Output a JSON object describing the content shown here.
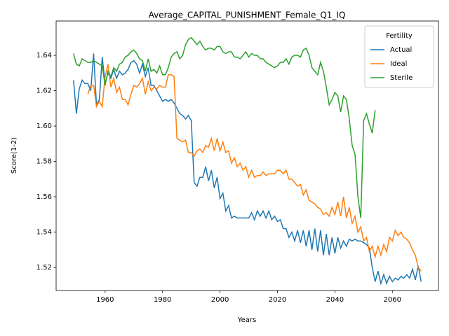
{
  "chart_data": {
    "type": "line",
    "title": "Average_CAPITAL_PUNISHMENT_Female_Q1_IQ",
    "x_label": "Years",
    "y_label": "Score(1-2)",
    "legend_title": "Fertility",
    "legend": "upper right",
    "x": [
      1949,
      1950,
      1951,
      1952,
      1953,
      1954,
      1955,
      1956,
      1957,
      1958,
      1959,
      1960,
      1961,
      1962,
      1963,
      1964,
      1965,
      1966,
      1967,
      1968,
      1969,
      1970,
      1971,
      1972,
      1973,
      1974,
      1975,
      1976,
      1977,
      1978,
      1979,
      1980,
      1981,
      1982,
      1983,
      1984,
      1985,
      1986,
      1987,
      1988,
      1989,
      1990,
      1991,
      1992,
      1993,
      1994,
      1995,
      1996,
      1997,
      1998,
      1999,
      2000,
      2001,
      2002,
      2003,
      2004,
      2005,
      2006,
      2007,
      2008,
      2009,
      2010,
      2011,
      2012,
      2013,
      2014,
      2015,
      2016,
      2017,
      2018,
      2019,
      2020,
      2021,
      2022,
      2023,
      2024,
      2025,
      2026,
      2027,
      2028,
      2029,
      2030,
      2031,
      2032,
      2033,
      2034,
      2035,
      2036,
      2037,
      2038,
      2039,
      2040,
      2041,
      2042,
      2043,
      2044,
      2045,
      2046,
      2047,
      2048,
      2049,
      2050,
      2051,
      2052,
      2053,
      2054,
      2055,
      2056,
      2057,
      2058,
      2059,
      2060,
      2061,
      2062,
      2063,
      2064,
      2065,
      2066,
      2067,
      2068,
      2069,
      2070
    ],
    "series": [
      {
        "name": "Actual",
        "color": "#1f77b4",
        "values": [
          1.626,
          1.607,
          1.621,
          1.626,
          1.624,
          1.624,
          1.62,
          1.641,
          1.612,
          1.615,
          1.639,
          1.624,
          1.63,
          1.627,
          1.632,
          1.627,
          1.631,
          1.629,
          1.63,
          1.632,
          1.636,
          1.637,
          1.635,
          1.63,
          1.635,
          1.628,
          1.633,
          1.623,
          1.623,
          1.62,
          1.617,
          1.614,
          1.615,
          1.614,
          1.615,
          1.613,
          1.61,
          1.607,
          1.606,
          1.604,
          1.606,
          1.603,
          1.568,
          1.566,
          1.571,
          1.571,
          1.577,
          1.569,
          1.575,
          1.565,
          1.571,
          1.559,
          1.562,
          1.552,
          1.555,
          1.548,
          1.549,
          1.548,
          1.548,
          1.548,
          1.548,
          1.548,
          1.551,
          1.547,
          1.552,
          1.549,
          1.552,
          1.548,
          1.552,
          1.547,
          1.549,
          1.546,
          1.547,
          1.542,
          1.542,
          1.537,
          1.54,
          1.535,
          1.541,
          1.534,
          1.541,
          1.532,
          1.541,
          1.53,
          1.542,
          1.529,
          1.541,
          1.527,
          1.539,
          1.527,
          1.537,
          1.528,
          1.537,
          1.531,
          1.535,
          1.532,
          1.536,
          1.535,
          1.536,
          1.535,
          1.535,
          1.534,
          1.533,
          1.531,
          1.52,
          1.512,
          1.518,
          1.511,
          1.516,
          1.511,
          1.515,
          1.512,
          1.514,
          1.513,
          1.515,
          1.514,
          1.516,
          1.514,
          1.519,
          1.513,
          1.521,
          1.512
        ]
      },
      {
        "name": "Ideal",
        "color": "#ff7f0e",
        "values": [
          null,
          null,
          null,
          null,
          null,
          1.618,
          1.623,
          1.623,
          1.611,
          1.614,
          1.611,
          1.628,
          1.635,
          1.622,
          1.627,
          1.619,
          1.622,
          1.615,
          1.615,
          1.612,
          1.618,
          1.623,
          1.622,
          1.624,
          1.627,
          1.618,
          1.625,
          1.62,
          1.622,
          1.621,
          1.623,
          1.622,
          1.622,
          1.629,
          1.629,
          1.628,
          1.593,
          1.592,
          1.591,
          1.592,
          1.585,
          1.585,
          1.583,
          1.586,
          1.587,
          1.585,
          1.589,
          1.588,
          1.593,
          1.586,
          1.593,
          1.586,
          1.591,
          1.585,
          1.586,
          1.579,
          1.582,
          1.577,
          1.579,
          1.575,
          1.577,
          1.571,
          1.575,
          1.571,
          1.572,
          1.572,
          1.574,
          1.572,
          1.573,
          1.573,
          1.573,
          1.575,
          1.575,
          1.573,
          1.575,
          1.57,
          1.57,
          1.568,
          1.566,
          1.567,
          1.561,
          1.564,
          1.558,
          1.557,
          1.556,
          1.554,
          1.553,
          1.55,
          1.551,
          1.549,
          1.554,
          1.55,
          1.557,
          1.549,
          1.56,
          1.548,
          1.554,
          1.545,
          1.549,
          1.54,
          1.543,
          1.535,
          1.537,
          1.529,
          1.532,
          1.526,
          1.532,
          1.527,
          1.533,
          1.529,
          1.537,
          1.535,
          1.541,
          1.538,
          1.54,
          1.537,
          1.536,
          1.534,
          1.53,
          1.527,
          1.52,
          1.518
        ]
      },
      {
        "name": "Sterile",
        "color": "#2ca02c",
        "values": [
          1.641,
          1.635,
          1.634,
          1.638,
          1.637,
          1.636,
          1.636,
          1.637,
          1.636,
          1.635,
          1.634,
          1.623,
          1.631,
          1.628,
          1.633,
          1.631,
          1.635,
          1.636,
          1.639,
          1.64,
          1.642,
          1.643,
          1.641,
          1.638,
          1.637,
          1.631,
          1.638,
          1.631,
          1.632,
          1.63,
          1.634,
          1.629,
          1.629,
          1.633,
          1.639,
          1.641,
          1.642,
          1.638,
          1.64,
          1.646,
          1.649,
          1.65,
          1.648,
          1.646,
          1.648,
          1.645,
          1.643,
          1.644,
          1.644,
          1.643,
          1.645,
          1.645,
          1.642,
          1.641,
          1.642,
          1.642,
          1.639,
          1.639,
          1.638,
          1.64,
          1.642,
          1.639,
          1.641,
          1.64,
          1.64,
          1.638,
          1.638,
          1.636,
          1.635,
          1.634,
          1.633,
          1.634,
          1.636,
          1.636,
          1.638,
          1.635,
          1.639,
          1.64,
          1.64,
          1.639,
          1.643,
          1.644,
          1.64,
          1.633,
          1.631,
          1.629,
          1.636,
          1.631,
          1.622,
          1.612,
          1.615,
          1.619,
          1.617,
          1.608,
          1.617,
          1.615,
          1.604,
          1.589,
          1.584,
          1.56,
          1.548,
          1.603,
          1.607,
          1.601,
          1.596,
          1.609,
          null,
          null,
          null,
          null,
          null,
          null,
          null,
          null,
          null,
          null,
          null,
          null,
          null,
          null,
          null,
          null
        ]
      }
    ],
    "xlim": [
      1942.95,
      2076.05
    ],
    "ylim": [
      1.507,
      1.6594
    ],
    "xticks": [
      1960,
      1980,
      2000,
      2020,
      2040,
      2060
    ],
    "yticks": [
      1.52,
      1.54,
      1.56,
      1.58,
      {
        "value": 1.6,
        "label": "1.60"
      },
      1.62,
      1.64
    ]
  }
}
